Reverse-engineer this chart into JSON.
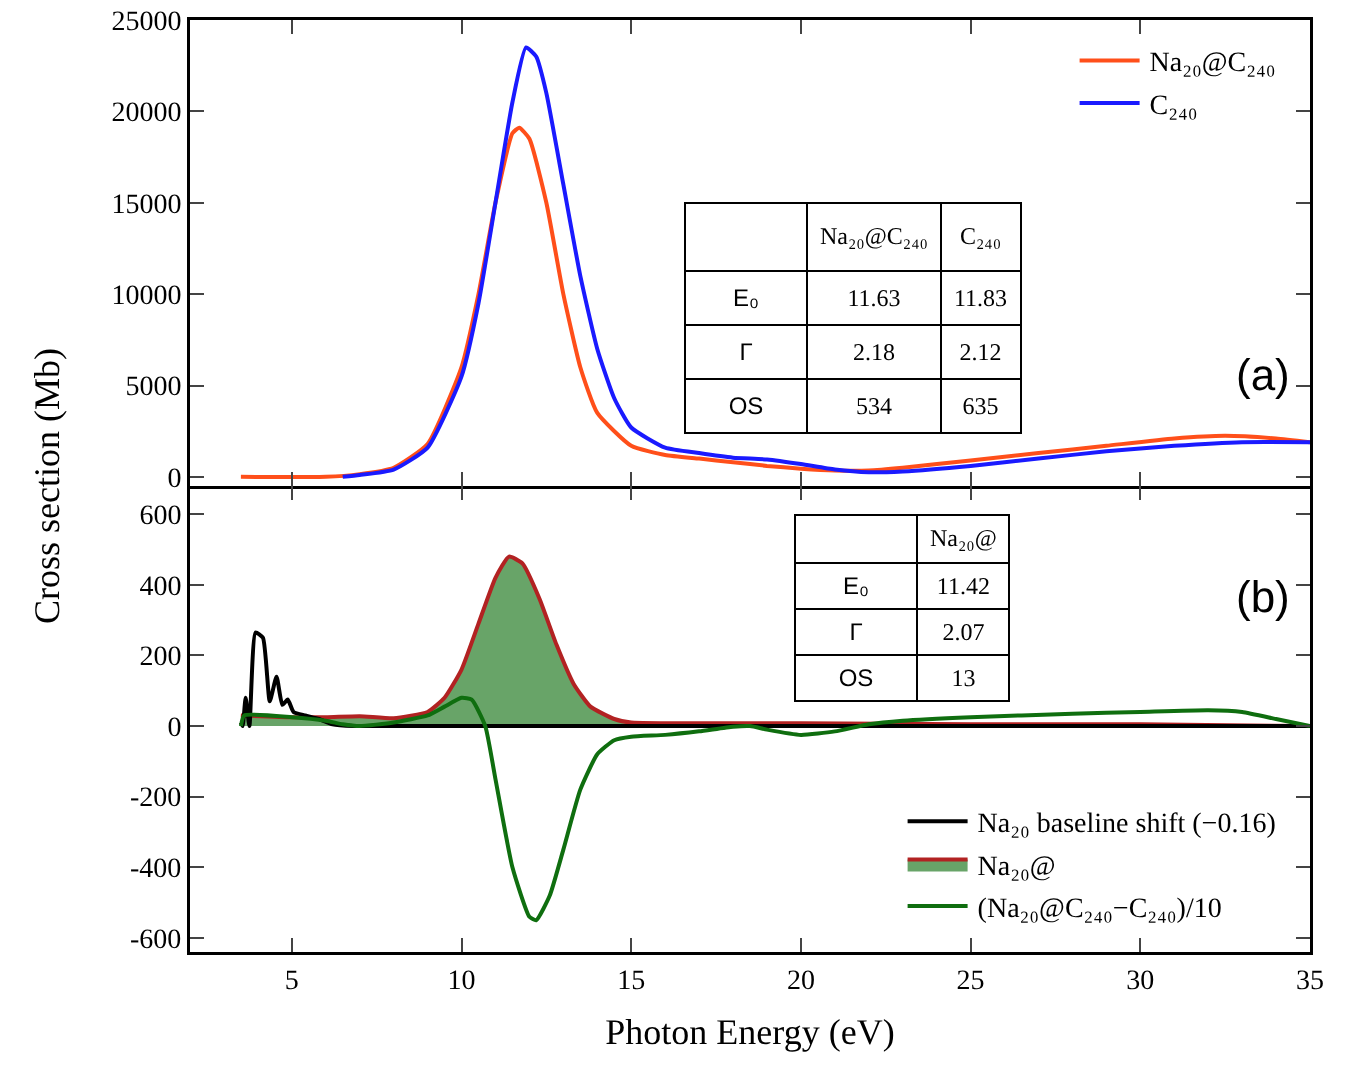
{
  "chart_data": [
    {
      "type": "line",
      "ylabel": "Cross section (Mb)",
      "xlim": [
        2,
        35
      ],
      "ylim": [
        -500,
        25000
      ],
      "yticks": [
        0,
        5000,
        10000,
        15000,
        20000,
        25000
      ],
      "xticks": [
        5,
        10,
        15,
        20,
        25,
        30,
        35
      ],
      "tick_labels": "y",
      "legend": "top right",
      "marker": "none",
      "line_style": "solid",
      "annotations": [
        "(a)"
      ],
      "series": [
        {
          "name": "Na₂₀@C₂₄₀",
          "color": "#ff4f1a",
          "x": [
            3.5,
            6,
            7,
            8,
            9,
            10,
            10.5,
            11,
            11.5,
            11.7,
            12,
            12.5,
            13,
            13.5,
            14,
            15,
            16,
            17,
            18,
            19,
            20,
            21,
            22,
            23,
            25,
            27,
            29,
            31,
            32.5,
            34,
            35
          ],
          "values": [
            0,
            0,
            150,
            500,
            1800,
            6000,
            10000,
            15000,
            18800,
            19100,
            18500,
            15000,
            10000,
            6000,
            3500,
            1700,
            1200,
            1000,
            800,
            600,
            450,
            350,
            350,
            500,
            900,
            1300,
            1700,
            2100,
            2250,
            2100,
            1900
          ]
        },
        {
          "name": "C₂₄₀",
          "color": "#1a1aff",
          "x": [
            6.5,
            7,
            8,
            9,
            10,
            10.5,
            11,
            11.5,
            11.9,
            12.2,
            12.5,
            13,
            13.5,
            14,
            14.5,
            15,
            16,
            17,
            18,
            19,
            20,
            21,
            22,
            23,
            25,
            27,
            29,
            31,
            33,
            35
          ],
          "values": [
            0,
            100,
            400,
            1600,
            5500,
            9500,
            15000,
            20500,
            23500,
            23000,
            21000,
            16000,
            11000,
            7000,
            4300,
            2700,
            1600,
            1300,
            1050,
            950,
            700,
            400,
            250,
            300,
            600,
            1000,
            1400,
            1700,
            1900,
            1900
          ]
        }
      ]
    },
    {
      "type": "other",
      "categories": [
        "Na₂₀@C₂₄₀",
        "C₂₄₀"
      ],
      "annotations": [
        "E₀",
        "11.63",
        "11.83",
        "Γ",
        "2.18",
        "2.12",
        "OS",
        "534",
        "635"
      ]
    },
    {
      "type": "line",
      "xlabel": "Photon Energy (eV)",
      "xlim": [
        2,
        35
      ],
      "ylim": [
        -640,
        680
      ],
      "yticks": [
        -600,
        -400,
        -200,
        0,
        200,
        400,
        600
      ],
      "xticks": [
        5,
        10,
        15,
        20,
        25,
        30,
        35
      ],
      "legend": "bottom right",
      "marker": "none",
      "line_style": "solid",
      "annotations": [
        "(b)"
      ],
      "series": [
        {
          "name": "Na₂₀ baseline shift (−0.16)",
          "color": "#000000",
          "x": [
            3.5,
            3.55,
            3.64,
            3.75,
            3.93,
            4.15,
            4.35,
            4.55,
            4.72,
            4.88,
            5.05,
            5.4,
            5.8,
            6.2,
            6.8,
            35
          ],
          "values": [
            10,
            0,
            80,
            0,
            265,
            250,
            70,
            140,
            60,
            75,
            40,
            30,
            20,
            5,
            0,
            0
          ]
        },
        {
          "name": "Na₂₀@",
          "type": "area",
          "color": "#68a468",
          "x": [
            3.5,
            5,
            6,
            7,
            8,
            9,
            9.5,
            10,
            10.5,
            11,
            11.4,
            11.8,
            12.3,
            12.8,
            13.3,
            13.8,
            14.5,
            15,
            20,
            25,
            30,
            35
          ],
          "values": [
            30,
            25,
            25,
            28,
            22,
            40,
            80,
            160,
            290,
            420,
            480,
            460,
            360,
            230,
            120,
            55,
            20,
            10,
            8,
            5,
            5,
            0
          ]
        },
        {
          "name": "(Na₂₀@C₂₄₀−C₂₄₀)/10",
          "color": "#0f6e0f",
          "x": [
            3.5,
            3.6,
            5,
            6,
            6.5,
            7,
            8,
            9,
            9.5,
            10,
            10.3,
            10.7,
            11,
            11.5,
            12,
            12.2,
            12.6,
            13,
            13.5,
            14,
            14.5,
            15,
            16,
            17,
            18,
            18.5,
            19,
            20,
            21,
            22,
            23,
            25,
            28,
            30,
            32,
            33,
            34,
            35
          ],
          "values": [
            0,
            30,
            25,
            15,
            5,
            0,
            10,
            30,
            55,
            80,
            75,
            0,
            -150,
            -400,
            -540,
            -550,
            -480,
            -350,
            -180,
            -80,
            -40,
            -30,
            -25,
            -15,
            -2,
            0,
            -10,
            -25,
            -15,
            5,
            15,
            25,
            35,
            40,
            45,
            40,
            20,
            0
          ]
        }
      ]
    },
    {
      "type": "other",
      "categories": [
        "Na₂₀@"
      ],
      "annotations": [
        "E₀",
        "11.42",
        "Γ",
        "2.07",
        "OS",
        "13"
      ]
    }
  ]
}
